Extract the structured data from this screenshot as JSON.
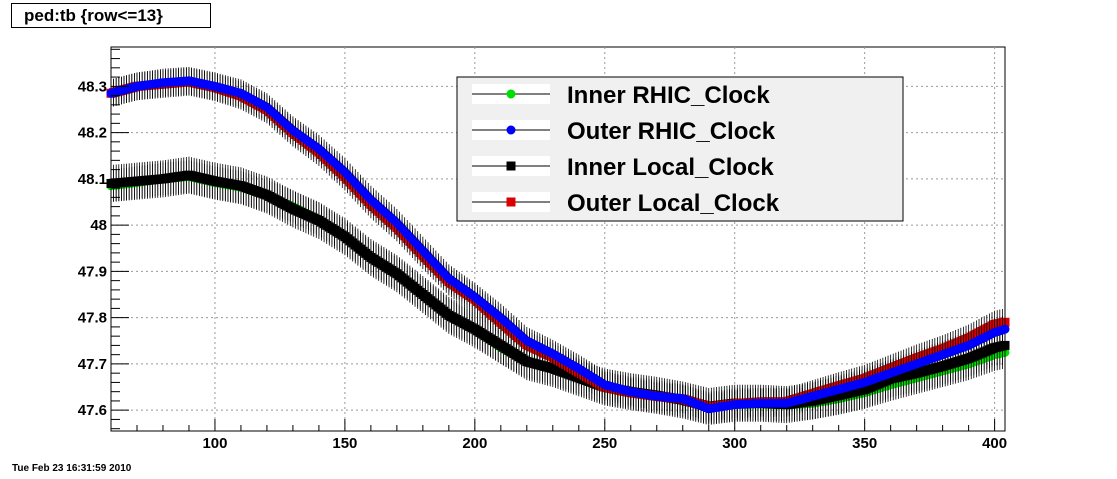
{
  "title": "ped:tb {row<=13}",
  "timestamp": "Tue Feb 23 16:31:59 2010",
  "chart_data": {
    "type": "scatter",
    "title": "ped:tb {row<=13}",
    "xlabel": "",
    "ylabel": "",
    "xlim": [
      60,
      404
    ],
    "ylim": [
      47.555,
      48.385
    ],
    "grid": true,
    "legend_position": "top-right",
    "x_ticks": [
      100,
      150,
      200,
      250,
      300,
      350,
      400
    ],
    "y_ticks": [
      47.6,
      47.7,
      47.8,
      47.9,
      48,
      48.1,
      48.2,
      48.3
    ],
    "y_tick_labels": [
      "47.6",
      "47.7",
      "47.8",
      "47.9",
      "48",
      "48.1",
      "48.2",
      "48.3"
    ],
    "x": [
      60,
      70,
      80,
      90,
      100,
      110,
      120,
      130,
      140,
      150,
      160,
      170,
      180,
      190,
      200,
      210,
      220,
      230,
      240,
      250,
      260,
      270,
      280,
      290,
      300,
      310,
      320,
      330,
      340,
      350,
      360,
      370,
      380,
      390,
      400,
      404
    ],
    "series": [
      {
        "name": "Inner RHIC_Clock",
        "color": "#00dd00",
        "marker": "circle",
        "error": 0.035,
        "values": [
          48.085,
          48.092,
          48.1,
          48.105,
          48.092,
          48.082,
          48.063,
          48.04,
          48.012,
          47.975,
          47.93,
          47.895,
          47.85,
          47.805,
          47.775,
          47.735,
          47.705,
          47.69,
          47.67,
          47.648,
          47.638,
          47.63,
          47.621,
          47.605,
          47.612,
          47.613,
          47.611,
          47.615,
          47.625,
          47.638,
          47.655,
          47.67,
          47.685,
          47.7,
          47.72,
          47.725
        ]
      },
      {
        "name": "Outer RHIC_Clock",
        "color": "#0000ff",
        "marker": "circle",
        "error": 0.03,
        "values": [
          48.285,
          48.3,
          48.308,
          48.312,
          48.3,
          48.285,
          48.255,
          48.205,
          48.165,
          48.115,
          48.055,
          48.005,
          47.945,
          47.885,
          47.845,
          47.8,
          47.75,
          47.722,
          47.69,
          47.655,
          47.64,
          47.63,
          47.625,
          47.603,
          47.612,
          47.615,
          47.615,
          47.63,
          47.645,
          47.66,
          47.68,
          47.7,
          47.72,
          47.74,
          47.768,
          47.775
        ]
      },
      {
        "name": "Inner Local_Clock",
        "color": "#000000",
        "marker": "square",
        "error": 0.04,
        "values": [
          48.09,
          48.095,
          48.1,
          48.108,
          48.095,
          48.085,
          48.065,
          48.035,
          48.01,
          47.975,
          47.93,
          47.895,
          47.85,
          47.805,
          47.775,
          47.74,
          47.705,
          47.69,
          47.67,
          47.65,
          47.64,
          47.632,
          47.622,
          47.608,
          47.615,
          47.615,
          47.612,
          47.62,
          47.632,
          47.645,
          47.668,
          47.68,
          47.695,
          47.712,
          47.735,
          47.74
        ]
      },
      {
        "name": "Outer Local_Clock",
        "color": "#dd0000",
        "marker": "square",
        "error": 0.03,
        "values": [
          48.285,
          48.3,
          48.305,
          48.31,
          48.298,
          48.28,
          48.25,
          48.2,
          48.158,
          48.105,
          48.045,
          47.995,
          47.935,
          47.878,
          47.84,
          47.79,
          47.742,
          47.715,
          47.682,
          47.65,
          47.638,
          47.63,
          47.624,
          47.607,
          47.614,
          47.618,
          47.618,
          47.635,
          47.652,
          47.668,
          47.69,
          47.712,
          47.732,
          47.755,
          47.785,
          47.79
        ]
      }
    ]
  }
}
